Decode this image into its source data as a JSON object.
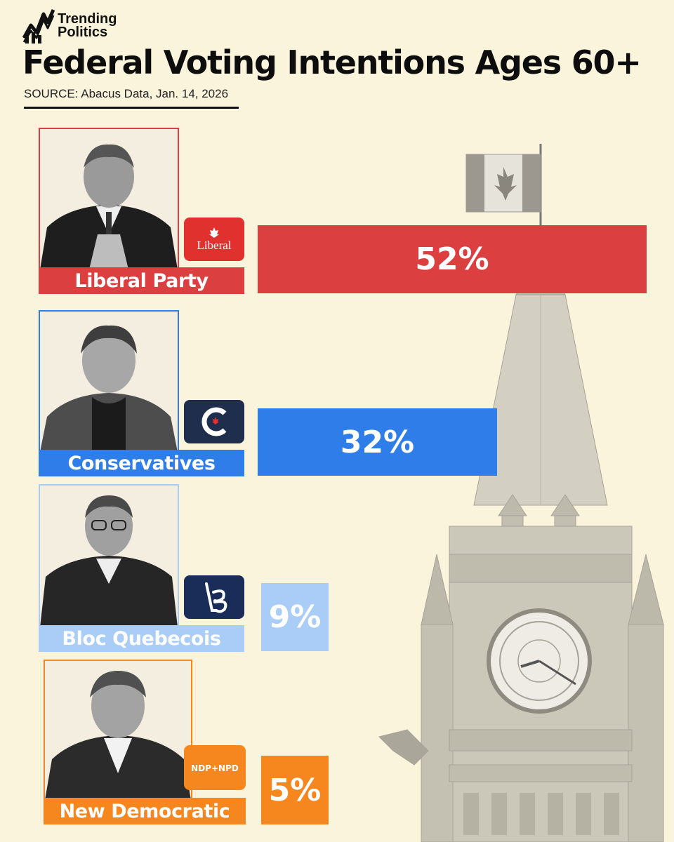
{
  "brand": {
    "line1": "Trending",
    "line2": "Politics"
  },
  "header": {
    "title": "Federal Voting Intentions Ages 60+",
    "source": "SOURCE: Abacus Data, Jan. 14, 2026"
  },
  "chart_data": {
    "type": "bar",
    "title": "Federal Voting Intentions Ages 60+",
    "categories": [
      "Liberal Party",
      "Conservatives",
      "Bloc Quebecois",
      "New Democratic"
    ],
    "values": [
      52,
      32,
      9,
      5
    ],
    "value_labels": [
      "52%",
      "32%",
      "9%",
      "5%"
    ],
    "colors": [
      "#dc3f40",
      "#2f7de8",
      "#a9cdf6",
      "#f6871f"
    ],
    "logos": [
      "Liberal",
      "",
      "",
      "NDP+NPD"
    ],
    "logo_icons": [
      "liberal-logo-icon",
      "conservative-logo-icon",
      "bloc-logo-icon",
      "ndp-logo-icon"
    ],
    "orientation": "horizontal",
    "grid": false,
    "legend": "none"
  }
}
